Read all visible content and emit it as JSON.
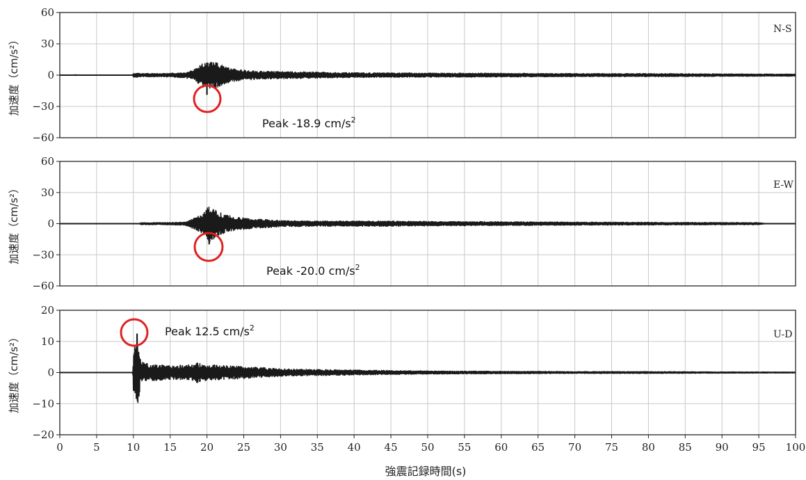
{
  "chart_data": [
    {
      "type": "line",
      "component": "N-S",
      "ylabel": "加速度（cm/s²）",
      "ylim": [
        -60,
        60
      ],
      "yticks": [
        "60",
        "30",
        "0",
        "−30",
        "−60"
      ],
      "xlim": [
        0,
        100
      ],
      "grid": true,
      "peak": {
        "time": 20.0,
        "value": -18.9
      },
      "annotation": {
        "text": "Peak -18.9 cm/s",
        "sup": "2"
      },
      "envelope": [
        [
          0,
          0
        ],
        [
          1.9,
          0
        ],
        [
          2.1,
          0.5
        ],
        [
          2.4,
          0
        ],
        [
          9.9,
          0
        ],
        [
          10,
          2.2
        ],
        [
          10.5,
          2.2
        ],
        [
          11,
          1.6
        ],
        [
          14,
          1.6
        ],
        [
          17,
          2.5
        ],
        [
          18.5,
          6
        ],
        [
          19.5,
          12
        ],
        [
          20.2,
          13
        ],
        [
          21.5,
          12
        ],
        [
          22.5,
          8
        ],
        [
          24,
          5.5
        ],
        [
          27,
          4
        ],
        [
          30,
          3.5
        ],
        [
          35,
          3
        ],
        [
          40,
          2.2
        ],
        [
          50,
          2
        ],
        [
          60,
          1.8
        ],
        [
          70,
          1.5
        ],
        [
          80,
          1.5
        ],
        [
          90,
          1.2
        ],
        [
          100,
          1
        ]
      ],
      "series": [
        {
          "values_note": ""
        }
      ]
    },
    {
      "type": "line",
      "component": "E-W",
      "ylabel": "加速度（cm/s²）",
      "ylim": [
        -60,
        60
      ],
      "yticks": [
        "60",
        "30",
        "0",
        "−30",
        "−60"
      ],
      "xlim": [
        0,
        100
      ],
      "grid": true,
      "peak": {
        "time": 20.3,
        "value": -20.0
      },
      "annotation": {
        "text": "Peak -20.0 cm/s",
        "sup": "2"
      },
      "envelope": [
        [
          0,
          0
        ],
        [
          10.8,
          0
        ],
        [
          11,
          1
        ],
        [
          14,
          1
        ],
        [
          17,
          1.5
        ],
        [
          18.5,
          6
        ],
        [
          19.5,
          10
        ],
        [
          20.3,
          18
        ],
        [
          21.5,
          12
        ],
        [
          22.5,
          9
        ],
        [
          24,
          6
        ],
        [
          27,
          4.5
        ],
        [
          30,
          3
        ],
        [
          35,
          2.5
        ],
        [
          45,
          2.5
        ],
        [
          55,
          2
        ],
        [
          70,
          1.5
        ],
        [
          85,
          1.2
        ],
        [
          95,
          1
        ],
        [
          96,
          0
        ],
        [
          100,
          0
        ]
      ],
      "series": [
        {
          "values_note": ""
        }
      ]
    },
    {
      "type": "line",
      "component": "U-D",
      "ylabel": "加速度（cm/s²）",
      "ylim": [
        -20,
        20
      ],
      "yticks": [
        "20",
        "10",
        "0",
        "−10",
        "−20"
      ],
      "xlim": [
        0,
        100
      ],
      "grid": true,
      "peak": {
        "time": 10.5,
        "value": 12.5
      },
      "annotation": {
        "text": "Peak 12.5 cm/s",
        "sup": "2"
      },
      "envelope": [
        [
          0,
          0
        ],
        [
          9.9,
          0
        ],
        [
          10,
          6
        ],
        [
          10.5,
          12.5
        ],
        [
          11,
          3.5
        ],
        [
          12,
          2.8
        ],
        [
          15,
          2.2
        ],
        [
          18,
          2.5
        ],
        [
          18.5,
          3.3
        ],
        [
          20,
          2.5
        ],
        [
          25,
          2
        ],
        [
          30,
          1.2
        ],
        [
          35,
          1
        ],
        [
          40,
          0.8
        ],
        [
          50,
          0.5
        ],
        [
          60,
          0.4
        ],
        [
          70,
          0.3
        ],
        [
          80,
          0.3
        ],
        [
          90,
          0.2
        ],
        [
          100,
          0.15
        ]
      ],
      "series": [
        {
          "values_note": ""
        }
      ]
    }
  ],
  "xaxis": {
    "ticks": [
      "0",
      "5",
      "10",
      "15",
      "20",
      "25",
      "30",
      "35",
      "40",
      "45",
      "50",
      "55",
      "60",
      "65",
      "70",
      "75",
      "80",
      "85",
      "90",
      "95",
      "100"
    ],
    "label": "強震記録時間(s)"
  },
  "colors": {
    "trace": "#1a1a1a",
    "grid": "#c8c8c8",
    "frame": "#222222",
    "marker": "#e02020"
  }
}
